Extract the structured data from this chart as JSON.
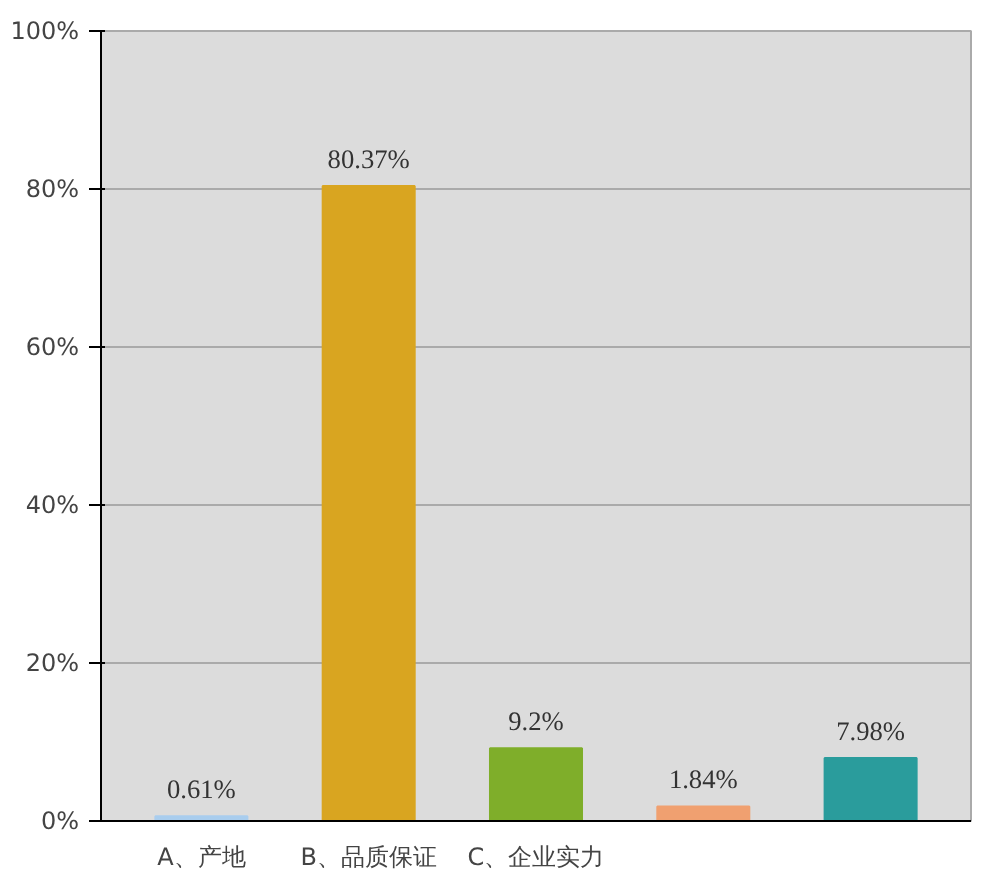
{
  "chart_data": {
    "type": "bar",
    "categories": [
      "A、产地",
      "B、品质保证",
      "C、企业实力",
      null,
      null
    ],
    "values": [
      0.61,
      80.37,
      9.2,
      1.84,
      7.98
    ],
    "colors": [
      "#a9cdee",
      "#d9a520",
      "#7fae2a",
      "#f0a070",
      "#2a9c9c"
    ],
    "value_labels": [
      "0.61%",
      "80.37%",
      "9.2%",
      "1.84%",
      "7.98%"
    ],
    "ylim": [
      0,
      100
    ],
    "yticks": [
      {
        "value": 0,
        "label": "0%"
      },
      {
        "value": 20,
        "label": "20%"
      },
      {
        "value": 40,
        "label": "40%"
      },
      {
        "value": 60,
        "label": "60%"
      },
      {
        "value": 80,
        "label": "80%"
      },
      {
        "value": 100,
        "label": "100%"
      }
    ],
    "grid": "y"
  }
}
